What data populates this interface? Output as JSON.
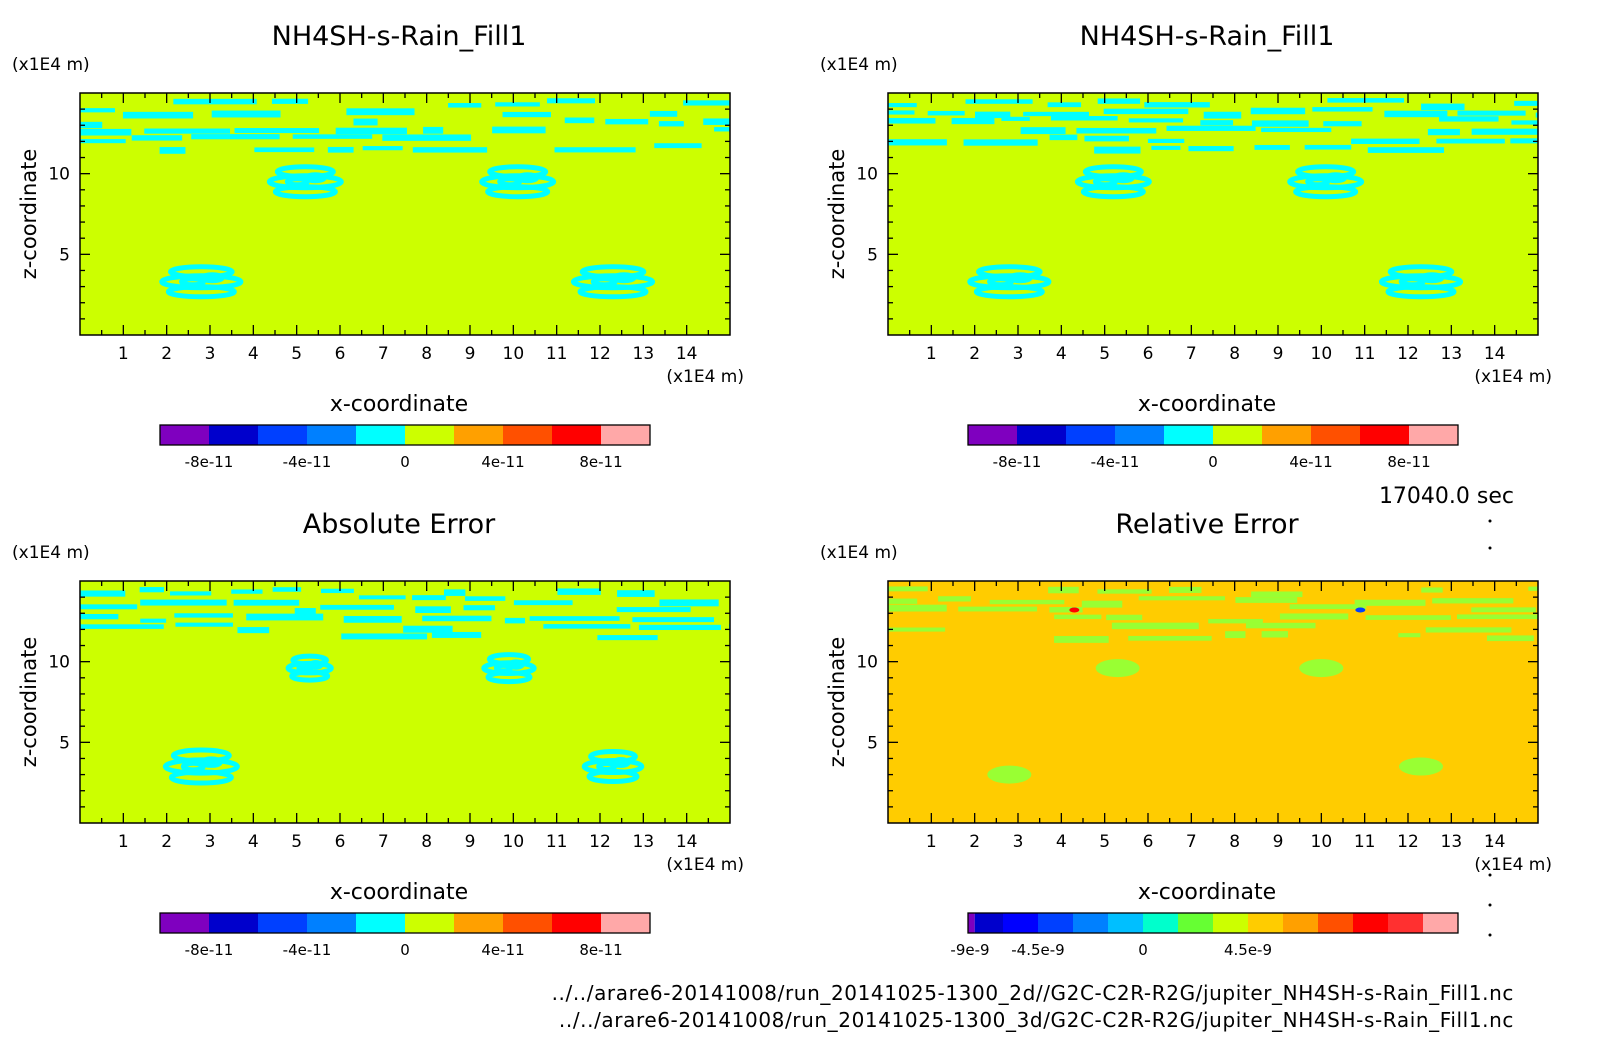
{
  "time_label": "17040.0 sec",
  "file_paths": [
    "../../arare6-20141008/run_20141025-1300_2d//G2C-C2R-R2G/jupiter_NH4SH-s-Rain_Fill1.nc",
    "../../arare6-20141008/run_20141025-1300_3d/G2C-C2R-R2G/jupiter_NH4SH-s-Rain_Fill1.nc"
  ],
  "colors": {
    "background_field": "#ccff00",
    "error_field": "#ffcc00",
    "contour_cyan": "#00ffff"
  },
  "chart_data": [
    {
      "type": "heatmap",
      "title": "NH4SH-s-Rain_Fill1",
      "xlabel": "x-coordinate",
      "ylabel": "z-coordinate",
      "xunit": "(x1E4 m)",
      "yunit": "(x1E4 m)",
      "xlim": [
        0,
        15
      ],
      "ylim": [
        0,
        15
      ],
      "xticks": [
        1,
        2,
        3,
        4,
        5,
        6,
        7,
        8,
        9,
        10,
        11,
        12,
        13,
        14
      ],
      "yticks": [
        5,
        10
      ],
      "colorbar": {
        "colors": [
          "#7f00bf",
          "#0000cc",
          "#0040ff",
          "#0080ff",
          "#00ffff",
          "#ccff00",
          "#ffa000",
          "#ff5000",
          "#ff0000",
          "#ffa8a8"
        ],
        "tick_values": [
          "-8e-11",
          "-4e-11",
          "0",
          "4e-11",
          "8e-11"
        ],
        "tick_positions": [
          1,
          3,
          5,
          7,
          9
        ]
      }
    },
    {
      "type": "heatmap",
      "title": "NH4SH-s-Rain_Fill1",
      "xlabel": "x-coordinate",
      "ylabel": "z-coordinate",
      "xunit": "(x1E4 m)",
      "yunit": "(x1E4 m)",
      "xlim": [
        0,
        15
      ],
      "ylim": [
        0,
        15
      ],
      "xticks": [
        1,
        2,
        3,
        4,
        5,
        6,
        7,
        8,
        9,
        10,
        11,
        12,
        13,
        14
      ],
      "yticks": [
        5,
        10
      ],
      "colorbar": {
        "colors": [
          "#7f00bf",
          "#0000cc",
          "#0040ff",
          "#0080ff",
          "#00ffff",
          "#ccff00",
          "#ffa000",
          "#ff5000",
          "#ff0000",
          "#ffa8a8"
        ],
        "tick_values": [
          "-8e-11",
          "-4e-11",
          "0",
          "4e-11",
          "8e-11"
        ],
        "tick_positions": [
          1,
          3,
          5,
          7,
          9
        ]
      }
    },
    {
      "type": "heatmap",
      "title": "Absolute Error",
      "xlabel": "x-coordinate",
      "ylabel": "z-coordinate",
      "xunit": "(x1E4 m)",
      "yunit": "(x1E4 m)",
      "xlim": [
        0,
        15
      ],
      "ylim": [
        0,
        15
      ],
      "xticks": [
        1,
        2,
        3,
        4,
        5,
        6,
        7,
        8,
        9,
        10,
        11,
        12,
        13,
        14
      ],
      "yticks": [
        5,
        10
      ],
      "colorbar": {
        "colors": [
          "#7f00bf",
          "#0000cc",
          "#0040ff",
          "#0080ff",
          "#00ffff",
          "#ccff00",
          "#ffa000",
          "#ff5000",
          "#ff0000",
          "#ffa8a8"
        ],
        "tick_values": [
          "-8e-11",
          "-4e-11",
          "0",
          "4e-11",
          "8e-11"
        ],
        "tick_positions": [
          1,
          3,
          5,
          7,
          9
        ]
      }
    },
    {
      "type": "heatmap",
      "title": "Relative Error",
      "xlabel": "x-coordinate",
      "ylabel": "z-coordinate",
      "xunit": "(x1E4 m)",
      "yunit": "(x1E4 m)",
      "xlim": [
        0,
        15
      ],
      "ylim": [
        0,
        15
      ],
      "xticks": [
        1,
        2,
        3,
        4,
        5,
        6,
        7,
        8,
        9,
        10,
        11,
        12,
        13,
        14
      ],
      "yticks": [
        5,
        10
      ],
      "colorbar": {
        "colors": [
          "#7f00bf",
          "#0000cc",
          "#0000ff",
          "#0040ff",
          "#0080ff",
          "#00bfff",
          "#00ffcc",
          "#66ff33",
          "#ccff00",
          "#ffcc00",
          "#ffa000",
          "#ff5000",
          "#ff0000",
          "#ff3030",
          "#ffa8a8"
        ],
        "tick_values": [
          "-9e-9",
          "-4.5e-9",
          "0",
          "4.5e-9"
        ],
        "tick_positions": [
          0,
          3,
          6,
          9
        ]
      }
    }
  ]
}
